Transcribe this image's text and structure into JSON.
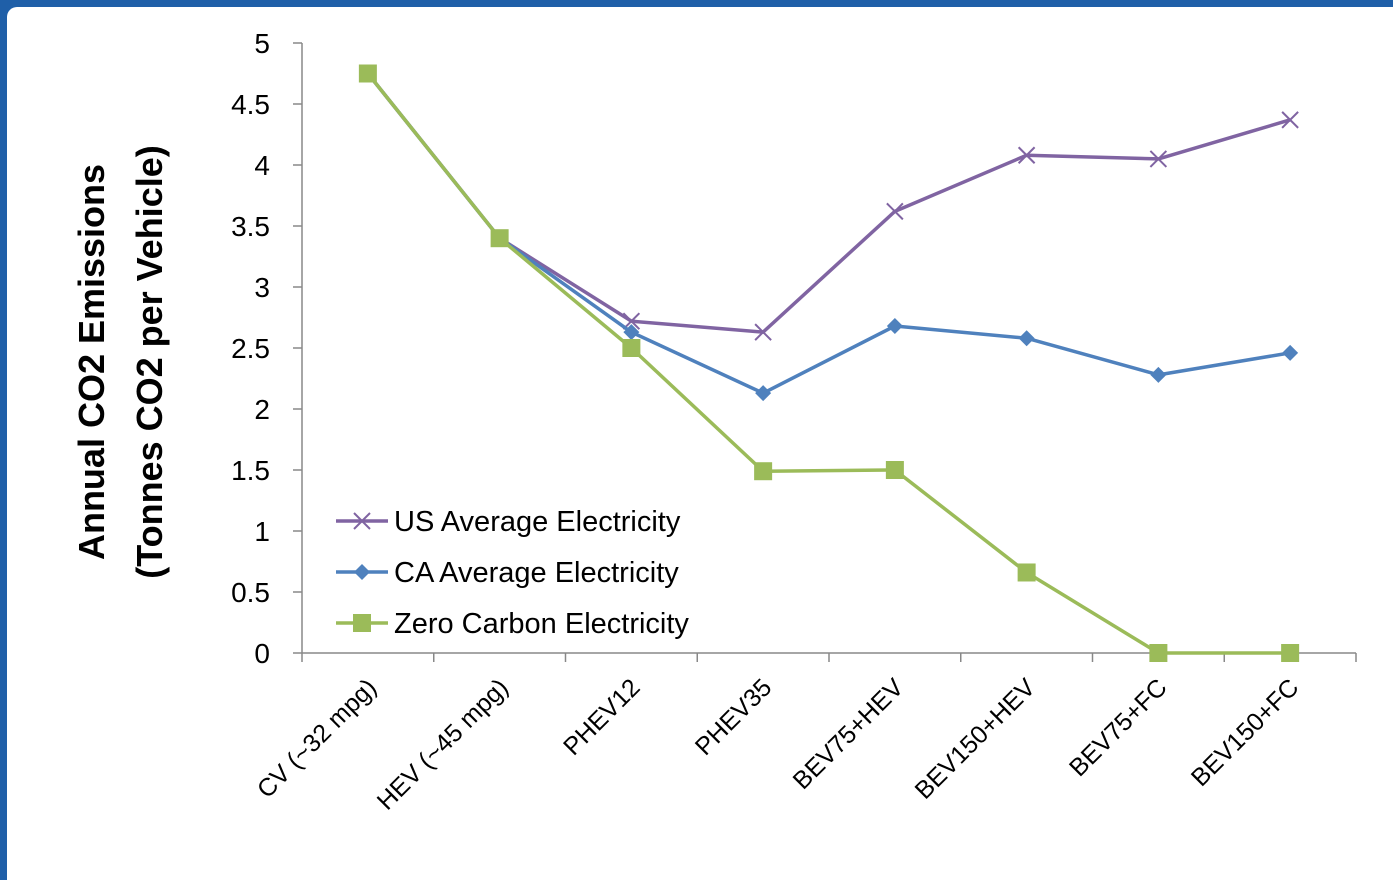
{
  "chart_data": {
    "type": "line",
    "title": "",
    "ylabel_line1": "Annual CO2 Emissions",
    "ylabel_line2": "(Tonnes CO2 per Vehicle)",
    "xlabel": "",
    "ylim": [
      0,
      5
    ],
    "yticks": [
      "0",
      "0.5",
      "1",
      "1.5",
      "2",
      "2.5",
      "3",
      "3.5",
      "4",
      "4.5",
      "5"
    ],
    "categories": [
      "CV (~32 mpg)",
      "HEV (~45 mpg)",
      "PHEV12",
      "PHEV35",
      "BEV75+HEV",
      "BEV150+HEV",
      "BEV75+FC",
      "BEV150+FC"
    ],
    "legend_position": "bottom-left",
    "grid": false,
    "series": [
      {
        "name": "US Average Electricity",
        "color": "#8064a2",
        "marker": "x",
        "values": [
          4.75,
          3.4,
          2.72,
          2.63,
          3.62,
          4.08,
          4.05,
          4.37
        ]
      },
      {
        "name": "CA Average Electricity",
        "color": "#4f81bd",
        "marker": "diamond",
        "values": [
          4.75,
          3.4,
          2.63,
          2.13,
          2.68,
          2.58,
          2.28,
          2.46
        ]
      },
      {
        "name": "Zero Carbon Electricity",
        "color": "#9bbb59",
        "marker": "square",
        "values": [
          4.75,
          3.4,
          2.5,
          1.49,
          1.5,
          0.66,
          0.0,
          0.0
        ]
      }
    ]
  }
}
